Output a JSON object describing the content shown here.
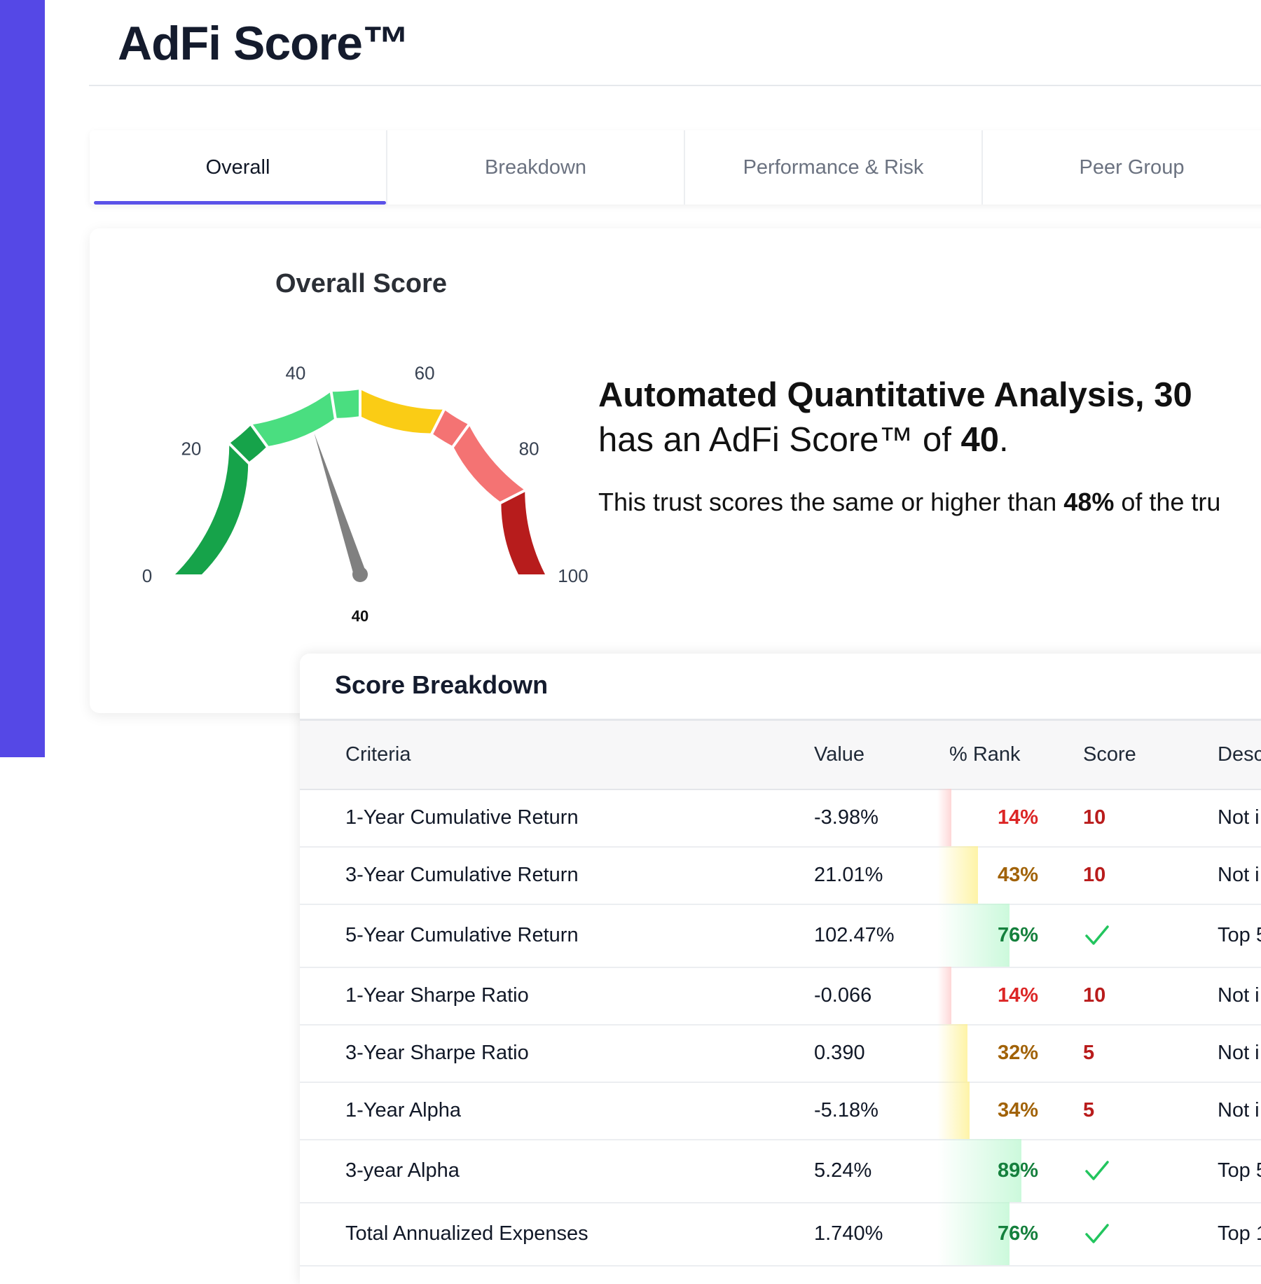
{
  "header": {
    "title": "AdFi Score™"
  },
  "tabs": [
    {
      "label": "Overall",
      "active": true
    },
    {
      "label": "Breakdown",
      "active": false
    },
    {
      "label": "Performance & Risk",
      "active": false
    },
    {
      "label": "Peer Group",
      "active": false
    }
  ],
  "overall": {
    "title": "Overall Score",
    "gauge": {
      "value": 40,
      "value_label": "40",
      "scale_min": 0,
      "scale_max": 100,
      "tick_labels": [
        "100",
        "80",
        "60",
        "40",
        "20",
        "0"
      ],
      "colors": {
        "dark_red": "#B71C1C",
        "red": "#F47373",
        "yellow": "#FACC15",
        "light_green": "#4ADE80",
        "green": "#16A34A",
        "needle": "#808080"
      }
    },
    "headline_prefix": "Automated Quantitative Analysis, 30",
    "headline_mid": "has an AdFi Score™ of ",
    "headline_score": "40",
    "headline_end": ".",
    "sub_prefix": "This trust scores the same or higher than ",
    "sub_percent": "48%",
    "sub_suffix": " of the tru"
  },
  "breakdown": {
    "title": "Score Breakdown",
    "columns": {
      "criteria": "Criteria",
      "value": "Value",
      "rank": "% Rank",
      "score": "Score",
      "description": "Desc"
    },
    "rows": [
      {
        "criteria": "1-Year Cumulative Return",
        "value": "-3.98%",
        "rank": "14%",
        "rank_pct": 14,
        "rank_level": "low",
        "score": "10",
        "score_type": "number",
        "description": "Not i"
      },
      {
        "criteria": "3-Year Cumulative Return",
        "value": "21.01%",
        "rank": "43%",
        "rank_pct": 43,
        "rank_level": "mid",
        "score": "10",
        "score_type": "number",
        "description": "Not i"
      },
      {
        "criteria": "5-Year Cumulative Return",
        "value": "102.47%",
        "rank": "76%",
        "rank_pct": 76,
        "rank_level": "high",
        "score": "",
        "score_type": "check",
        "description": "Top 5"
      },
      {
        "criteria": "1-Year Sharpe Ratio",
        "value": "-0.066",
        "rank": "14%",
        "rank_pct": 14,
        "rank_level": "low",
        "score": "10",
        "score_type": "number",
        "description": "Not i"
      },
      {
        "criteria": "3-Year Sharpe Ratio",
        "value": "0.390",
        "rank": "32%",
        "rank_pct": 32,
        "rank_level": "mid",
        "score": "5",
        "score_type": "number",
        "description": "Not i"
      },
      {
        "criteria": "1-Year Alpha",
        "value": "-5.18%",
        "rank": "34%",
        "rank_pct": 34,
        "rank_level": "mid",
        "score": "5",
        "score_type": "number",
        "description": "Not i"
      },
      {
        "criteria": "3-year Alpha",
        "value": "5.24%",
        "rank": "89%",
        "rank_pct": 89,
        "rank_level": "high",
        "score": "",
        "score_type": "check",
        "description": "Top 5"
      },
      {
        "criteria": "Total Annualized Expenses",
        "value": "1.740%",
        "rank": "76%",
        "rank_pct": 76,
        "rank_level": "high",
        "score": "",
        "score_type": "check",
        "description": "Top 1"
      }
    ],
    "level_colors": {
      "low": "#DC2626",
      "mid": "#A16207",
      "high": "#15803D",
      "score_red": "#B91C1C",
      "check": "#22C55E"
    }
  }
}
